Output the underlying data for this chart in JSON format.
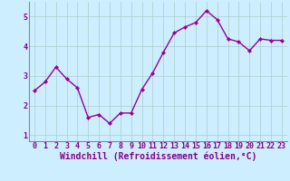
{
  "x": [
    0,
    1,
    2,
    3,
    4,
    5,
    6,
    7,
    8,
    9,
    10,
    11,
    12,
    13,
    14,
    15,
    16,
    17,
    18,
    19,
    20,
    21,
    22,
    23
  ],
  "y": [
    2.5,
    2.8,
    3.3,
    2.9,
    2.6,
    1.6,
    1.7,
    1.4,
    1.75,
    1.75,
    2.55,
    3.1,
    3.8,
    4.45,
    4.65,
    4.8,
    5.2,
    4.9,
    4.25,
    4.15,
    3.85,
    4.25,
    4.2,
    4.2
  ],
  "line_color": "#990099",
  "marker": "D",
  "marker_size": 2.2,
  "line_width": 1.0,
  "background_color": "#cceeff",
  "grid_color": "#aacccc",
  "xlabel": "Windchill (Refroidissement éolien,°C)",
  "xlabel_color": "#880088",
  "xlim": [
    -0.5,
    23.5
  ],
  "ylim": [
    0.8,
    5.5
  ],
  "yticks": [
    1,
    2,
    3,
    4,
    5
  ],
  "xticks": [
    0,
    1,
    2,
    3,
    4,
    5,
    6,
    7,
    8,
    9,
    10,
    11,
    12,
    13,
    14,
    15,
    16,
    17,
    18,
    19,
    20,
    21,
    22,
    23
  ],
  "tick_color": "#880088",
  "tick_fontsize": 6,
  "xlabel_fontsize": 7
}
